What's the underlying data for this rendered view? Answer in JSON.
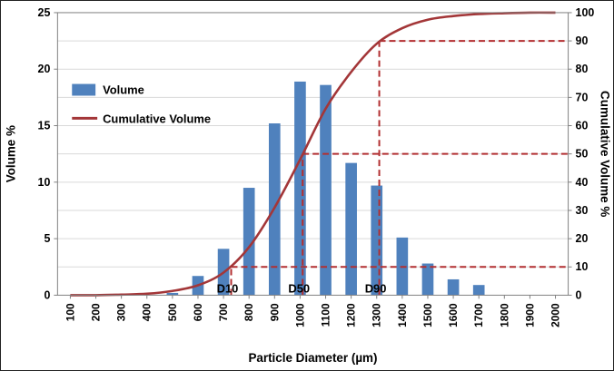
{
  "chart_data": {
    "type": "combo-bar-line",
    "title": "",
    "xlabel": "Particle Diameter (µm)",
    "left_axis": {
      "label": "Volume %",
      "ticks": [
        0,
        5,
        10,
        15,
        20,
        25
      ],
      "range": [
        0,
        25
      ]
    },
    "right_axis": {
      "label": "Cumulative Volume %",
      "ticks": [
        0,
        10,
        20,
        30,
        40,
        50,
        60,
        70,
        80,
        90,
        100
      ],
      "range": [
        0,
        100
      ]
    },
    "categories": [
      100,
      200,
      300,
      400,
      500,
      600,
      700,
      800,
      900,
      1000,
      1100,
      1200,
      1300,
      1400,
      1500,
      1600,
      1700,
      1800,
      1900,
      2000
    ],
    "series": [
      {
        "name": "Volume",
        "type": "bar",
        "axis": "left",
        "color": "#4F81BD",
        "values": [
          0,
          0,
          0,
          0,
          0.2,
          1.7,
          4.1,
          9.5,
          15.2,
          18.9,
          18.6,
          11.7,
          9.7,
          5.1,
          2.8,
          1.4,
          0.9,
          0,
          0,
          0
        ]
      },
      {
        "name": "Cumulative Volume",
        "type": "line",
        "axis": "right",
        "color": "#A33638",
        "values": [
          0,
          0,
          0.2,
          0.5,
          1.5,
          3.5,
          8,
          17,
          31,
          48,
          66,
          79,
          89,
          94.5,
          97.5,
          98.8,
          99.5,
          99.8,
          100,
          100
        ]
      }
    ],
    "annotations": [
      {
        "label": "D10",
        "x": 730,
        "percent": 10
      },
      {
        "label": "D50",
        "x": 1010,
        "percent": 50
      },
      {
        "label": "D90",
        "x": 1310,
        "percent": 90
      }
    ],
    "legend_position": "upper-left-inside",
    "grid": true,
    "colors": {
      "annotation": "#B22F31",
      "grid": "#D9D9D9",
      "axis": "#808080",
      "text": "#000000"
    }
  }
}
